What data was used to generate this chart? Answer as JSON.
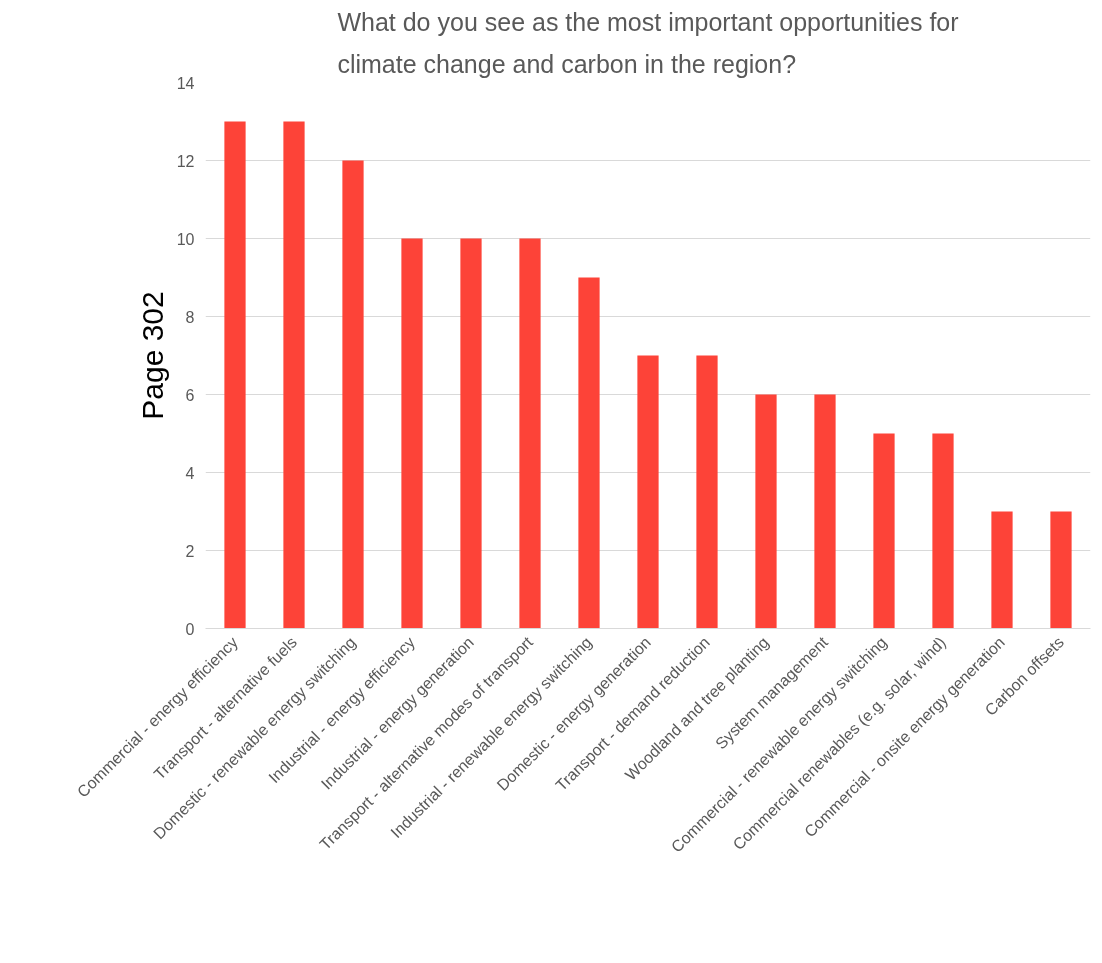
{
  "chart_data": {
    "type": "bar",
    "title": "What do you see as the most important opportunities for climate change and carbon in the region?",
    "categories": [
      "Commercial - energy efficiency",
      "Transport - alternative fuels",
      "Domestic - renewable energy switching",
      "Industrial - energy efficiency",
      "Industrial - energy generation",
      "Transport - alternative modes of transport",
      "Industrial - renewable energy switching",
      "Domestic - energy generation",
      "Transport - demand reduction",
      "Woodland and tree planting",
      "System management",
      "Commercial - renewable energy switching",
      "Commercial renewables (e.g. solar, wind)",
      "Commercial - onsite energy generation",
      "Carbon offsets"
    ],
    "values": [
      13,
      13,
      12,
      10,
      10,
      10,
      9,
      7,
      7,
      6,
      6,
      5,
      5,
      3,
      3
    ],
    "color": "#fd4338",
    "ylim": [
      0,
      14
    ],
    "yticks": [
      0,
      2,
      4,
      6,
      8,
      10,
      12,
      14
    ],
    "grid": "y",
    "annotations": [
      "Page 302"
    ]
  }
}
